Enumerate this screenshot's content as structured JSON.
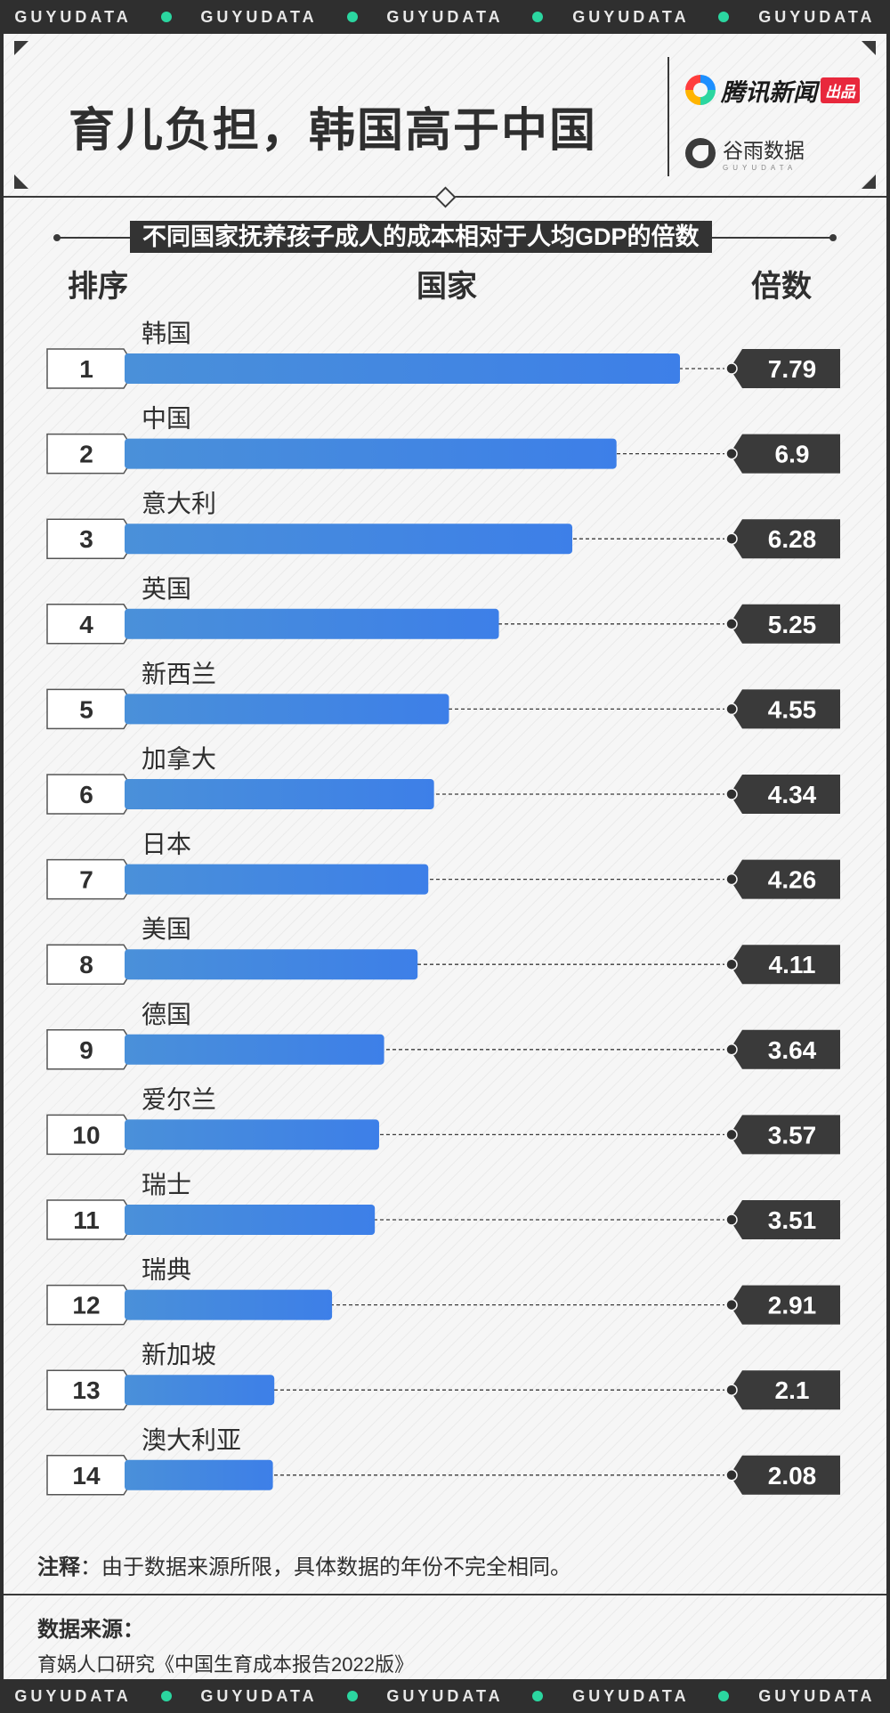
{
  "strip": {
    "word": "GUYUDATA"
  },
  "header": {
    "title": "育儿负担，韩国高于中国",
    "brand1": {
      "name": "腾讯新闻",
      "badge": "出品"
    },
    "brand2": {
      "name": "谷雨数据",
      "sub": "GUYUDATA"
    }
  },
  "columns": {
    "rank": "排序",
    "country": "国家",
    "multiple": "倍数"
  },
  "chart_data": {
    "type": "bar",
    "title": "不同国家抚养孩子成人的成本相对于人均GDP的倍数",
    "orientation": "horizontal",
    "categories": [
      "韩国",
      "中国",
      "意大利",
      "英国",
      "新西兰",
      "加拿大",
      "日本",
      "美国",
      "德国",
      "爱尔兰",
      "瑞士",
      "瑞典",
      "新加坡",
      "澳大利亚"
    ],
    "ranks": [
      "1",
      "2",
      "3",
      "4",
      "5",
      "6",
      "7",
      "8",
      "9",
      "10",
      "11",
      "12",
      "13",
      "14"
    ],
    "values": [
      7.79,
      6.9,
      6.28,
      5.25,
      4.55,
      4.34,
      4.26,
      4.11,
      3.64,
      3.57,
      3.51,
      2.91,
      2.1,
      2.08
    ],
    "value_labels": [
      "7.79",
      "6.9",
      "6.28",
      "5.25",
      "4.55",
      "4.34",
      "4.26",
      "4.11",
      "3.64",
      "3.57",
      "3.51",
      "2.91",
      "2.1",
      "2.08"
    ],
    "bar_color_start": "#4a90d9",
    "bar_color_end": "#3d7fe8"
  },
  "footer": {
    "note_label": "注释",
    "note_text": "：由于数据来源所限，具体数据的年份不完全相同。",
    "source_label": "数据来源：",
    "source_text": "育娲人口研究《中国生育成本报告2022版》"
  }
}
